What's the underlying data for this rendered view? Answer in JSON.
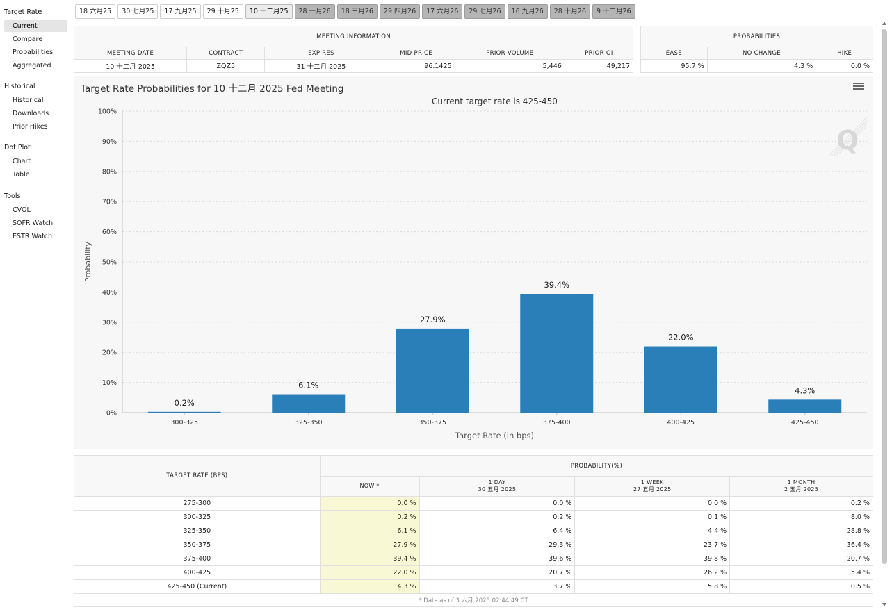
{
  "sidebar": {
    "sections": [
      {
        "heading": "Target Rate",
        "items": [
          "Current",
          "Compare",
          "Probabilities",
          "Aggregated"
        ]
      },
      {
        "heading": "Historical",
        "items": [
          "Historical",
          "Downloads",
          "Prior Hikes"
        ]
      },
      {
        "heading": "Dot Plot",
        "items": [
          "Chart",
          "Table"
        ]
      },
      {
        "heading": "Tools",
        "items": [
          "CVOL",
          "SOFR Watch",
          "ESTR Watch"
        ]
      }
    ],
    "active_item": "Current"
  },
  "tabs": [
    {
      "label": "18 六月25",
      "state": "normal"
    },
    {
      "label": "30 七月25",
      "state": "normal"
    },
    {
      "label": "17 九月25",
      "state": "normal"
    },
    {
      "label": "29 十月25",
      "state": "normal"
    },
    {
      "label": "10 十二月25",
      "state": "selected"
    },
    {
      "label": "28 一月26",
      "state": "future"
    },
    {
      "label": "18 三月26",
      "state": "future"
    },
    {
      "label": "29 四月26",
      "state": "future"
    },
    {
      "label": "17 六月26",
      "state": "future"
    },
    {
      "label": "29 七月26",
      "state": "future"
    },
    {
      "label": "16 九月26",
      "state": "future"
    },
    {
      "label": "28 十月26",
      "state": "future"
    },
    {
      "label": "9 十二月26",
      "state": "future"
    }
  ],
  "meeting_info": {
    "heading": "MEETING INFORMATION",
    "columns": [
      "MEETING DATE",
      "CONTRACT",
      "EXPIRES",
      "MID PRICE",
      "PRIOR VOLUME",
      "PRIOR OI"
    ],
    "values": [
      "10 十二月 2025",
      "ZQZ5",
      "31 十二月 2025",
      "96.1425",
      "5,446",
      "49,217"
    ]
  },
  "probabilities": {
    "heading": "PROBABILITIES",
    "columns": [
      "EASE",
      "NO CHANGE",
      "HIKE"
    ],
    "values": [
      "95.7 %",
      "4.3 %",
      "0.0 %"
    ]
  },
  "chart": {
    "title": "Target Rate Probabilities for 10 十二月 2025 Fed Meeting",
    "colors": {
      "bar": "#2b7fb8",
      "grid": "#d8d8d8",
      "axis": "#c0c0c0"
    },
    "icons": {
      "menu": "hamburger-menu-icon",
      "watermark": "q-logo-watermark"
    }
  },
  "chart_data": {
    "type": "bar",
    "subtitle": "Current target rate is 425-450",
    "categories": [
      "300-325",
      "325-350",
      "350-375",
      "375-400",
      "400-425",
      "425-450"
    ],
    "values": [
      0.2,
      6.1,
      27.9,
      39.4,
      22.0,
      4.3
    ],
    "data_labels": [
      "0.2%",
      "6.1%",
      "27.9%",
      "39.4%",
      "22.0%",
      "4.3%"
    ],
    "xlabel": "Target Rate (in bps)",
    "ylabel": "Probability",
    "ylim": [
      0,
      100
    ],
    "yticks": [
      "0%",
      "10%",
      "20%",
      "30%",
      "40%",
      "50%",
      "60%",
      "70%",
      "80%",
      "90%",
      "100%"
    ],
    "grid": true,
    "legend": "none"
  },
  "prob_table": {
    "target_header": "TARGET RATE (BPS)",
    "prob_header": "PROBABILITY(%)",
    "cols": [
      {
        "label": "NOW *",
        "sub": ""
      },
      {
        "label": "1 DAY",
        "sub": "30 五月 2025"
      },
      {
        "label": "1 WEEK",
        "sub": "27 五月 2025"
      },
      {
        "label": "1 MONTH",
        "sub": "2 五月 2025"
      }
    ],
    "rows": [
      {
        "rate": "275-300",
        "vals": [
          "0.0 %",
          "0.0 %",
          "0.0 %",
          "0.2 %"
        ]
      },
      {
        "rate": "300-325",
        "vals": [
          "0.2 %",
          "0.2 %",
          "0.1 %",
          "8.0 %"
        ]
      },
      {
        "rate": "325-350",
        "vals": [
          "6.1 %",
          "6.4 %",
          "4.4 %",
          "28.8 %"
        ]
      },
      {
        "rate": "350-375",
        "vals": [
          "27.9 %",
          "29.3 %",
          "23.7 %",
          "36.4 %"
        ]
      },
      {
        "rate": "375-400",
        "vals": [
          "39.4 %",
          "39.6 %",
          "39.8 %",
          "20.7 %"
        ]
      },
      {
        "rate": "400-425",
        "vals": [
          "22.0 %",
          "20.7 %",
          "26.2 %",
          "5.4 %"
        ]
      },
      {
        "rate": "425-450 (Current)",
        "vals": [
          "4.3 %",
          "3.7 %",
          "5.8 %",
          "0.5 %"
        ]
      }
    ],
    "footnote": "* Data as of 3 六月 2025 02:44:49 CT"
  }
}
